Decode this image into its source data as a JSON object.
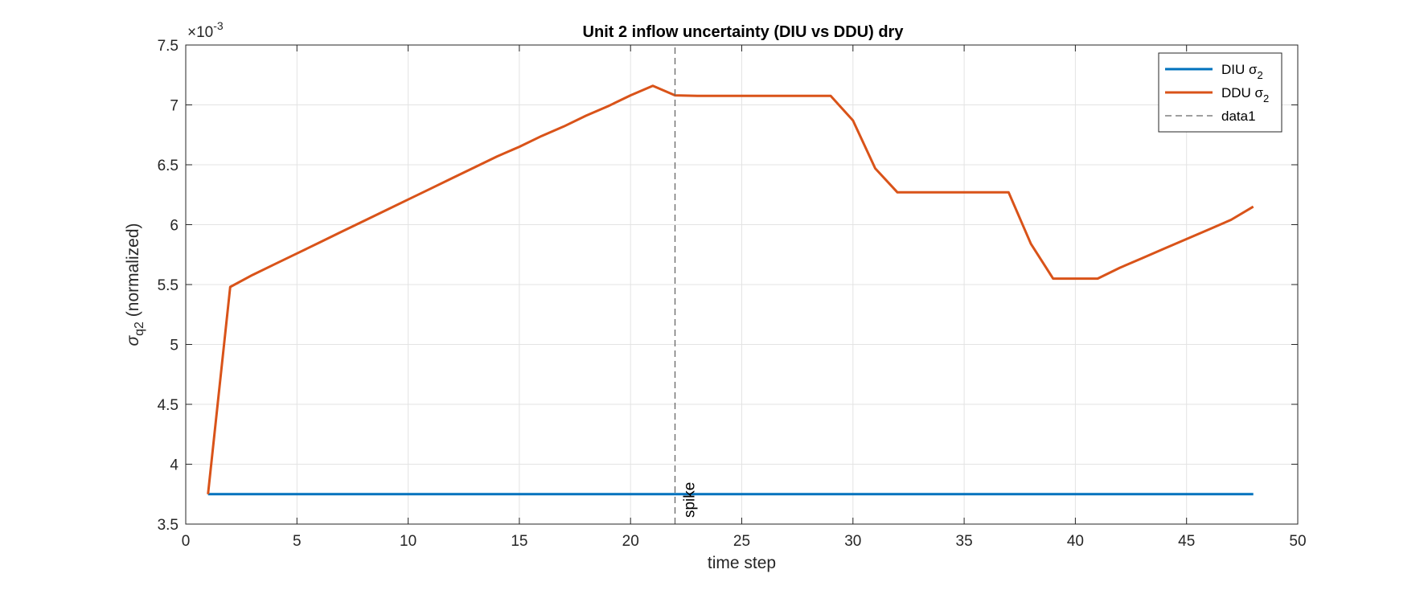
{
  "chart_data": {
    "type": "line",
    "title": "Unit 2 inflow uncertainty (DIU vs DDU) dry",
    "xlabel": "time step",
    "ylabel": {
      "base": "σ",
      "sub": "q2",
      "rest": " (normalized)"
    },
    "y_exponent": {
      "base": "×10",
      "sup": "-3"
    },
    "xlim": [
      0,
      50
    ],
    "ylim": [
      3.5,
      7.5
    ],
    "x_ticks": [
      0,
      5,
      10,
      15,
      20,
      25,
      30,
      35,
      40,
      45,
      50
    ],
    "y_ticks": [
      3.5,
      4,
      4.5,
      5,
      5.5,
      6,
      6.5,
      7,
      7.5
    ],
    "x_tick_labels": [
      "0",
      "5",
      "10",
      "15",
      "20",
      "25",
      "30",
      "35",
      "40",
      "45",
      "50"
    ],
    "y_tick_labels": [
      "3.5",
      "4",
      "4.5",
      "5",
      "5.5",
      "6",
      "6.5",
      "7",
      "7.5"
    ],
    "grid": true,
    "legend_position": "top-right",
    "series": [
      {
        "name": "DIU σ2",
        "label_base": "DIU σ",
        "label_sub": "2",
        "color": "#0072BD",
        "style": "solid",
        "x": [
          1,
          48
        ],
        "values": [
          3.75,
          3.75
        ]
      },
      {
        "name": "DDU σ2",
        "label_base": "DDU σ",
        "label_sub": "2",
        "color": "#D95319",
        "style": "solid",
        "x": [
          1,
          2,
          3,
          4,
          5,
          6,
          7,
          8,
          9,
          10,
          11,
          12,
          13,
          14,
          15,
          16,
          17,
          18,
          19,
          20,
          21,
          22,
          23,
          24,
          25,
          26,
          27,
          28,
          29,
          30,
          31,
          32,
          33,
          34,
          35,
          36,
          37,
          38,
          39,
          40,
          41,
          42,
          43,
          44,
          45,
          46,
          47,
          48
        ],
        "values": [
          3.75,
          5.48,
          5.58,
          5.67,
          5.76,
          5.85,
          5.94,
          6.03,
          6.12,
          6.21,
          6.3,
          6.39,
          6.48,
          6.57,
          6.65,
          6.74,
          6.82,
          6.91,
          6.99,
          7.08,
          7.16,
          7.08,
          7.075,
          7.075,
          7.075,
          7.075,
          7.075,
          7.075,
          7.075,
          6.87,
          6.47,
          6.27,
          6.27,
          6.27,
          6.27,
          6.27,
          6.27,
          5.84,
          5.55,
          5.55,
          5.55,
          5.64,
          5.72,
          5.8,
          5.88,
          5.96,
          6.04,
          6.15
        ]
      },
      {
        "name": "data1",
        "label_base": "data1",
        "label_sub": "",
        "color": "#666666",
        "style": "dashed",
        "x": [
          22,
          22
        ],
        "values": [
          3.5,
          7.5
        ]
      }
    ],
    "annotations": [
      {
        "text": "spike",
        "x": 22,
        "y": 3.5,
        "rotation": -90
      }
    ]
  }
}
